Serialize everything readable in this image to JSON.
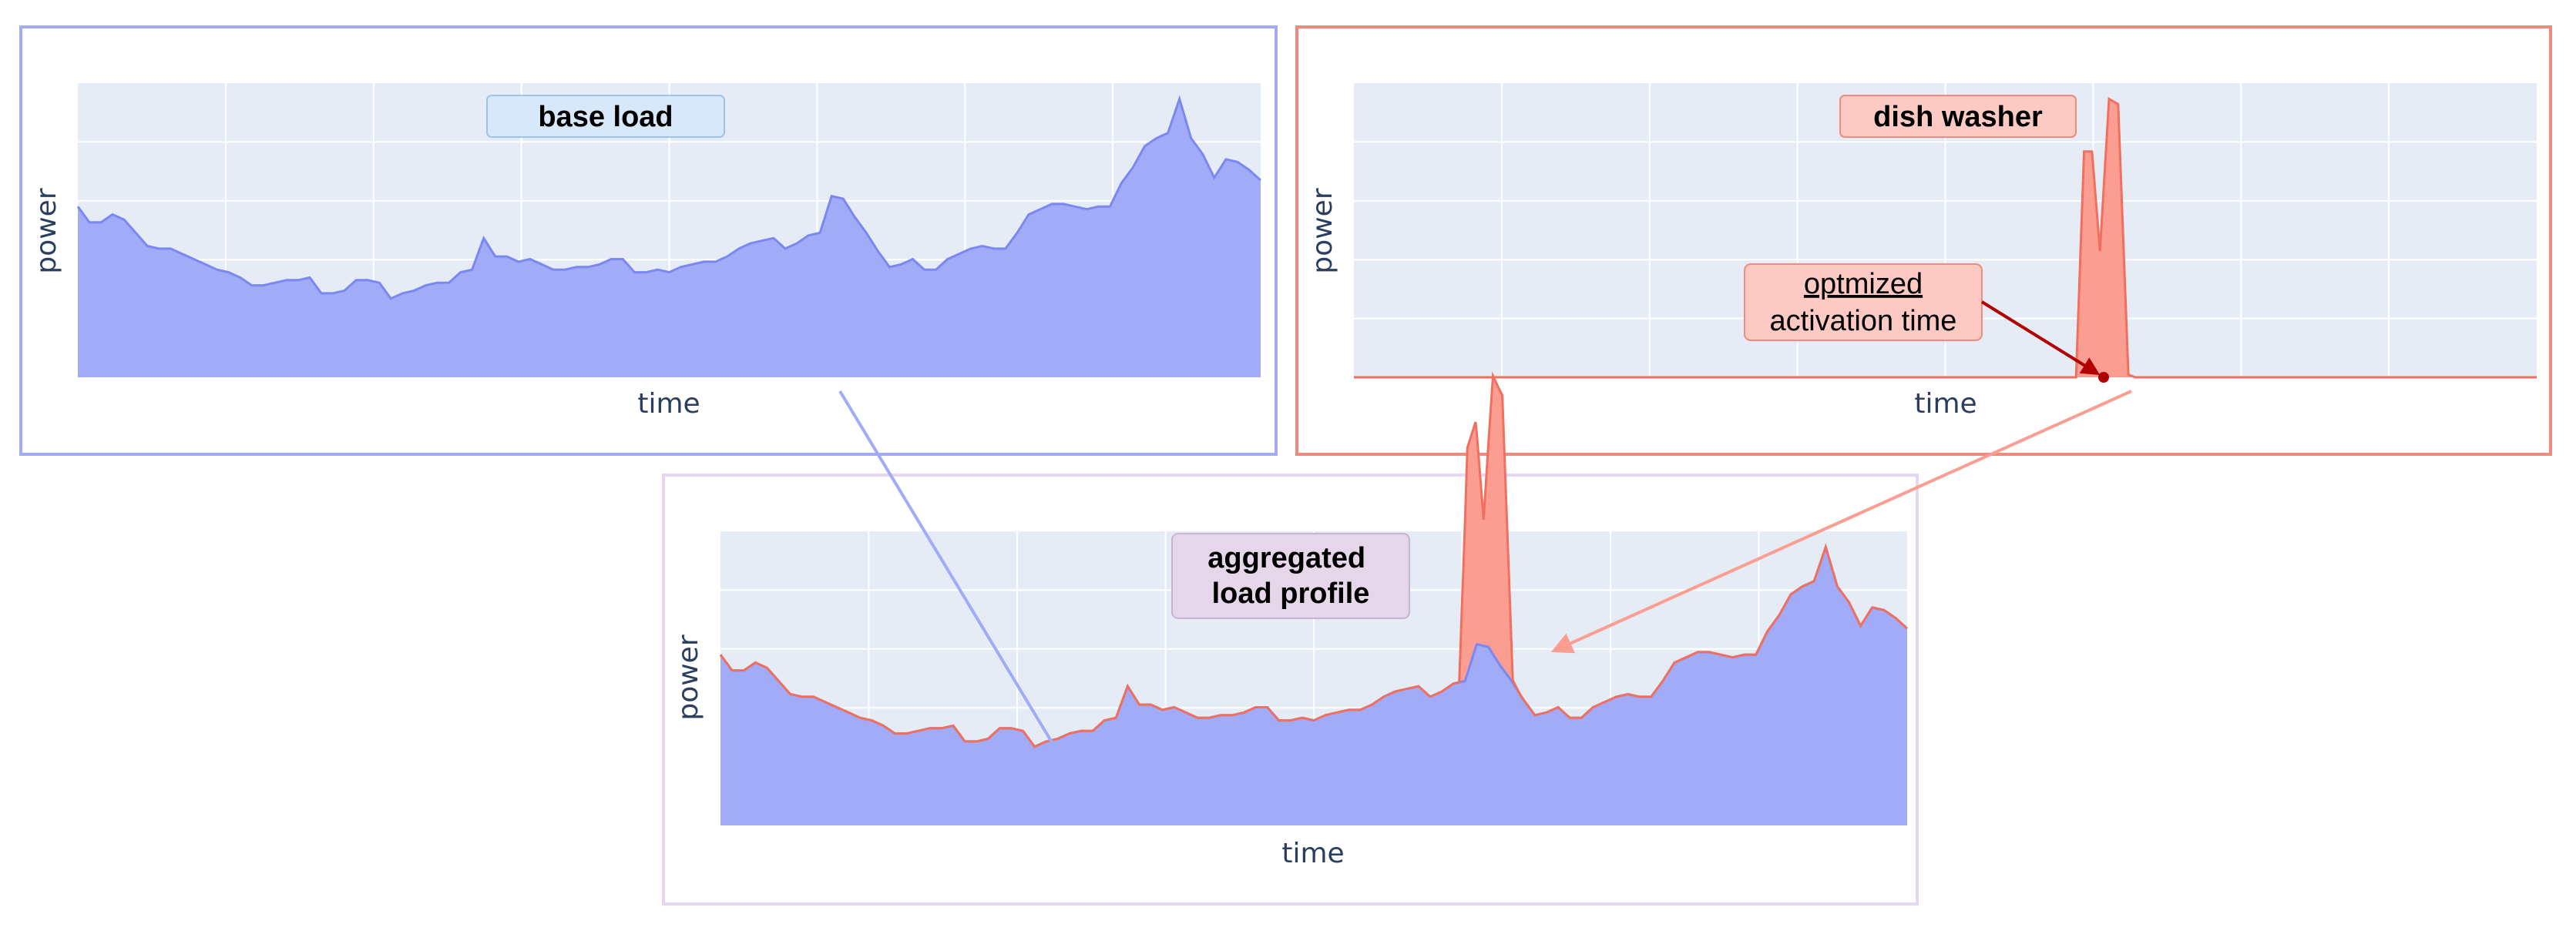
{
  "chart_data": [
    {
      "type": "area",
      "name": "base-load",
      "title": "base load",
      "xlabel": "time",
      "ylabel": "power",
      "ylim": [
        0,
        5.6
      ],
      "grid": true,
      "values": [
        3.25,
        2.95,
        2.95,
        3.1,
        3.0,
        2.75,
        2.5,
        2.45,
        2.45,
        2.35,
        2.25,
        2.15,
        2.05,
        2.0,
        1.9,
        1.75,
        1.75,
        1.8,
        1.85,
        1.85,
        1.9,
        1.6,
        1.6,
        1.65,
        1.85,
        1.85,
        1.8,
        1.5,
        1.6,
        1.65,
        1.75,
        1.8,
        1.8,
        2.0,
        2.05,
        2.65,
        2.3,
        2.3,
        2.2,
        2.25,
        2.15,
        2.05,
        2.05,
        2.1,
        2.1,
        2.15,
        2.25,
        2.25,
        2.0,
        2.0,
        2.05,
        2.0,
        2.1,
        2.15,
        2.2,
        2.2,
        2.3,
        2.45,
        2.55,
        2.6,
        2.65,
        2.45,
        2.55,
        2.7,
        2.75,
        3.45,
        3.4,
        3.05,
        2.75,
        2.4,
        2.1,
        2.15,
        2.25,
        2.05,
        2.05,
        2.25,
        2.35,
        2.45,
        2.5,
        2.45,
        2.45,
        2.75,
        3.1,
        3.2,
        3.3,
        3.3,
        3.25,
        3.2,
        3.25,
        3.25,
        3.7,
        4.0,
        4.4,
        4.55,
        4.65,
        5.3,
        4.55,
        4.25,
        3.8,
        4.15,
        4.1,
        3.95,
        3.75
      ],
      "color": "#a1abf8",
      "line_color": "#7a88f0"
    },
    {
      "type": "area",
      "name": "dish-washer",
      "title": "dish washer",
      "xlabel": "time",
      "ylabel": "power",
      "ylim": [
        0,
        5.6
      ],
      "grid": true,
      "x": [
        0,
        63.5,
        64.2,
        64.9,
        65.6,
        66.4,
        67.2,
        68.1,
        68.7,
        69.2,
        70.3,
        104
      ],
      "values": [
        0,
        0,
        4.3,
        4.3,
        2.4,
        5.3,
        5.2,
        0.05,
        0,
        0,
        0,
        0
      ],
      "color": "#fc9d92",
      "line_color": "#f0705f"
    },
    {
      "type": "area",
      "name": "aggregated-load-profile",
      "title": "aggregated\nload profile",
      "xlabel": "time",
      "ylabel": "power",
      "ylim": [
        0,
        5.6
      ],
      "grid": true,
      "series": [
        {
          "values": "base + dish washer",
          "color": "#a1abf8"
        },
        {
          "values": "dish washer stacked",
          "color": "#fc9d92"
        }
      ]
    }
  ],
  "annotation": {
    "line1": "optmized",
    "line2": "activation time",
    "color": "#b30000"
  },
  "colors": {
    "base_frame": "#a1abf8",
    "dish_frame": "#f08a7f",
    "agg_frame": "#e4d7f0",
    "plot_bg": "#e5ecf6",
    "grid": "#ffffff",
    "base_label_bg": "#d6e8f9",
    "dish_label_bg": "#fcc9c3",
    "agg_label_bg": "#e6d6ea"
  }
}
